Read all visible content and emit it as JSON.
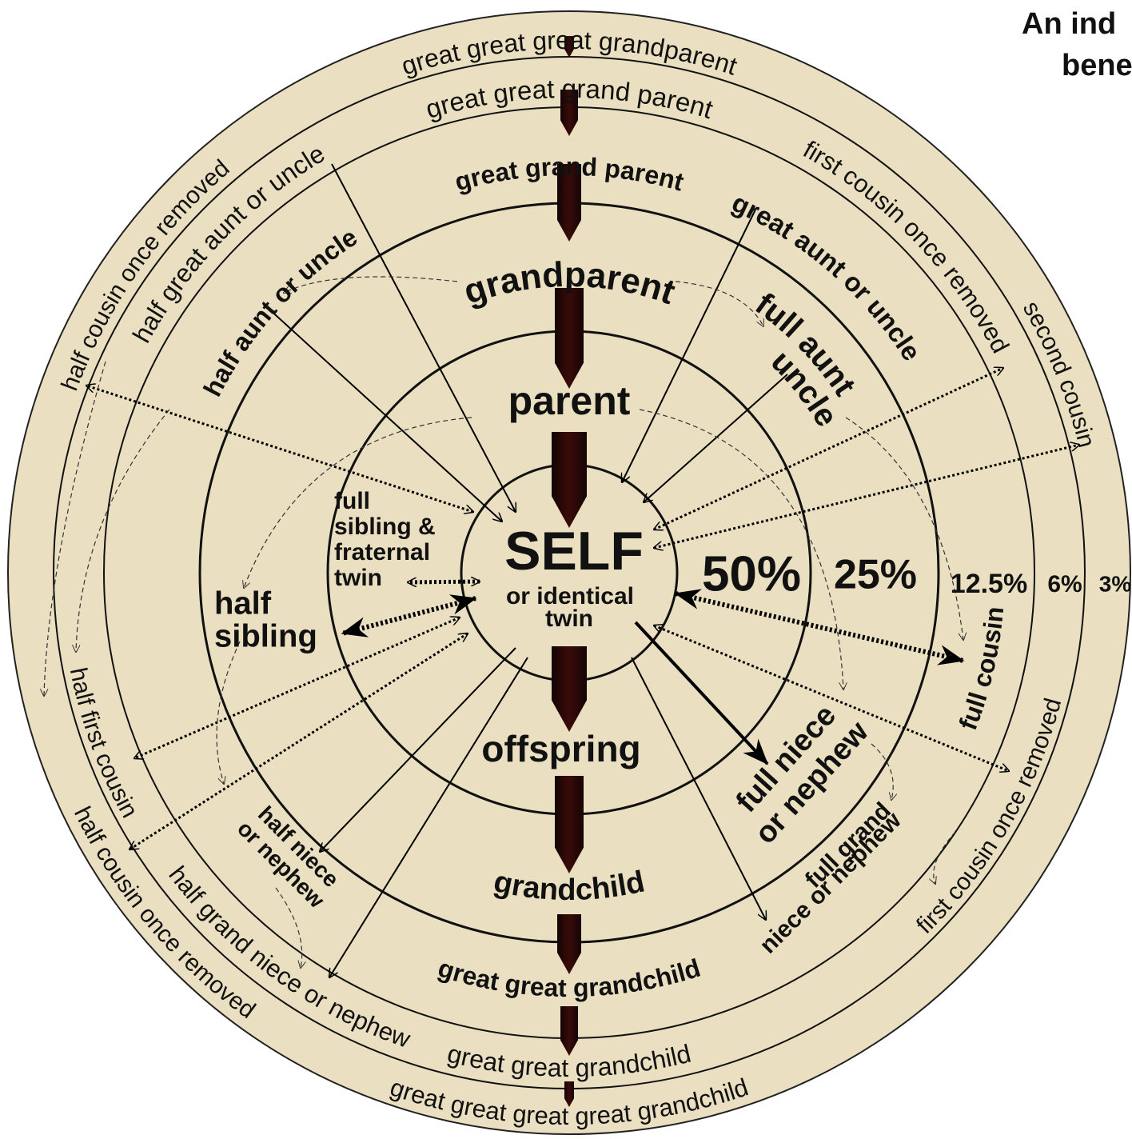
{
  "title": [
    "An ind",
    "bene"
  ],
  "self": {
    "label": "SELF",
    "sublabel": [
      "or identical",
      "twin"
    ]
  },
  "percentages": [
    "50%",
    "25%",
    "12.5%",
    "6%",
    "3%"
  ],
  "lineage": [
    "great great great grandparent",
    "great great grand parent",
    "great grand parent",
    "grandparent",
    "parent",
    "offspring",
    "grandchild",
    "great great grandchild",
    "great great grandchild",
    "great great great great grandchild"
  ],
  "relatives": [
    {
      "lines": [
        "first cousin once removed"
      ]
    },
    {
      "lines": [
        "great aunt or uncle"
      ]
    },
    {
      "lines": [
        "second cousin"
      ]
    },
    {
      "lines": [
        "full aunt",
        "uncle"
      ]
    },
    {
      "lines": [
        "half aunt or uncle"
      ]
    },
    {
      "lines": [
        "half great aunt or uncle"
      ]
    },
    {
      "lines": [
        "half cousin once removed"
      ]
    },
    {
      "lines": [
        "half first cousin"
      ]
    },
    {
      "lines": [
        "half cousin once removed"
      ]
    },
    {
      "lines": [
        "half grand niece or nephew"
      ]
    },
    {
      "lines": [
        "first cousin once removed"
      ]
    },
    {
      "lines": [
        "full cousin"
      ]
    },
    {
      "lines": [
        "full niece",
        "or nephew"
      ]
    },
    {
      "lines": [
        "full grand",
        "niece or nephew"
      ]
    },
    {
      "lines": [
        "half niece",
        "or nephew"
      ]
    },
    {
      "lines": [
        "half",
        "sibling"
      ]
    },
    {
      "lines": [
        "full",
        "sibling &",
        "fraternal",
        "twin"
      ]
    }
  ]
}
